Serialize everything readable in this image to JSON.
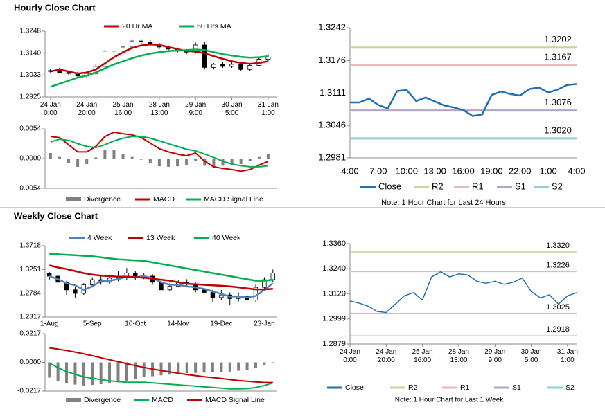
{
  "sections": [
    {
      "title": "Hourly Close Chart"
    },
    {
      "title": "Weekly Close Chart"
    }
  ],
  "chart_data": [
    {
      "type": "candlestick",
      "legend": "top",
      "x": [
        0,
        5,
        10,
        15,
        20,
        25,
        30,
        35,
        40,
        45,
        50,
        55,
        60,
        65,
        70,
        75,
        80,
        85,
        90,
        95,
        100,
        105,
        110,
        115,
        120
      ],
      "open": [
        1.305,
        1.3055,
        1.3045,
        1.304,
        1.3028,
        1.304,
        1.3075,
        1.315,
        1.3165,
        1.317,
        1.32,
        1.3195,
        1.318,
        1.317,
        1.316,
        1.315,
        1.3145,
        1.318,
        1.307,
        1.3085,
        1.3075,
        1.3085,
        1.306,
        1.308,
        1.311
      ],
      "high": [
        1.3065,
        1.3068,
        1.3055,
        1.3048,
        1.305,
        1.3085,
        1.3158,
        1.3172,
        1.3185,
        1.3212,
        1.321,
        1.3205,
        1.319,
        1.3178,
        1.3168,
        1.316,
        1.3192,
        1.3195,
        1.3092,
        1.3098,
        1.3095,
        1.3092,
        1.3088,
        1.3118,
        1.3135
      ],
      "low": [
        1.304,
        1.304,
        1.3032,
        1.302,
        1.3018,
        1.3035,
        1.3068,
        1.314,
        1.3155,
        1.3162,
        1.3185,
        1.3175,
        1.316,
        1.315,
        1.314,
        1.3135,
        1.3138,
        1.306,
        1.306,
        1.3068,
        1.3068,
        1.3052,
        1.3052,
        1.3075,
        1.31
      ],
      "close": [
        1.3055,
        1.3045,
        1.304,
        1.3028,
        1.304,
        1.3075,
        1.315,
        1.3165,
        1.317,
        1.32,
        1.3195,
        1.318,
        1.317,
        1.316,
        1.315,
        1.3145,
        1.318,
        1.307,
        1.3085,
        1.3075,
        1.3085,
        1.306,
        1.308,
        1.311,
        1.312
      ],
      "series": [
        {
          "name": "20 Hr MA",
          "color": "#c00000",
          "values": [
            1.305,
            1.306,
            1.305,
            1.304,
            1.3045,
            1.306,
            1.309,
            1.312,
            1.3145,
            1.3165,
            1.3178,
            1.3183,
            1.318,
            1.317,
            1.316,
            1.315,
            1.3148,
            1.314,
            1.3125,
            1.3112,
            1.31,
            1.3092,
            1.3088,
            1.3092,
            1.31
          ]
        },
        {
          "name": "50 Hrs MA",
          "color": "#00b050",
          "values": [
            1.2975,
            1.299,
            1.3005,
            1.302,
            1.303,
            1.3045,
            1.3065,
            1.3085,
            1.31,
            1.3115,
            1.3128,
            1.3138,
            1.3145,
            1.315,
            1.3153,
            1.3155,
            1.3158,
            1.3155,
            1.3145,
            1.3135,
            1.3128,
            1.3122,
            1.3118,
            1.312,
            1.3125
          ]
        }
      ],
      "xlim": [
        -3,
        125
      ],
      "xticks": [
        {
          "value": 0,
          "label": "24 Jan\n0:00"
        },
        {
          "value": 20,
          "label": "24 Jan\n20:00"
        },
        {
          "value": 40,
          "label": "25 Jan\n16:00"
        },
        {
          "value": 60,
          "label": "28 Jan\n13:00"
        },
        {
          "value": 80,
          "label": "29 Jan\n9:00"
        },
        {
          "value": 100,
          "label": "30 Jan\n5:00"
        },
        {
          "value": 120,
          "label": "31 Jan\n1:00"
        }
      ],
      "ylim": [
        1.2925,
        1.3248
      ],
      "yticks": [
        1.2925,
        1.3033,
        {
          "value": 1.314,
          "label": "1.3140"
        },
        1.3248
      ]
    },
    {
      "type": "combo",
      "legend": "bottom",
      "x": [
        0,
        5,
        10,
        15,
        20,
        25,
        30,
        35,
        40,
        45,
        50,
        55,
        60,
        65,
        70,
        75,
        80,
        85,
        90,
        95,
        100,
        105,
        110,
        115,
        120
      ],
      "series": [
        {
          "name": "Divergence",
          "type": "bar",
          "color": "#808080",
          "values": [
            0.001,
            0.0003,
            -0.0008,
            -0.0015,
            -0.001,
            0.0002,
            0.0015,
            0.0016,
            0.0008,
            0.0003,
            -0.0002,
            -0.0009,
            -0.0014,
            -0.0015,
            -0.0014,
            -0.0012,
            -0.0004,
            -0.0013,
            -0.0017,
            -0.0013,
            -0.001,
            -0.001,
            -0.0005,
            0.0003,
            0.0008
          ]
        },
        {
          "name": "MACD",
          "type": "line",
          "color": "#c00000",
          "values": [
            0.004,
            0.0038,
            0.0025,
            0.0012,
            0.0012,
            0.0022,
            0.004,
            0.0048,
            0.0045,
            0.0043,
            0.0038,
            0.0028,
            0.0018,
            0.0012,
            0.0008,
            0.0005,
            0.001,
            -0.0005,
            -0.0015,
            -0.0018,
            -0.002,
            -0.0023,
            -0.002,
            -0.0012,
            -0.0005
          ]
        },
        {
          "name": "MACD Signal Line",
          "type": "line",
          "color": "#00b050",
          "values": [
            0.003,
            0.0035,
            0.0033,
            0.0027,
            0.0022,
            0.002,
            0.0025,
            0.0032,
            0.0037,
            0.004,
            0.004,
            0.0037,
            0.0032,
            0.0027,
            0.0022,
            0.0017,
            0.0014,
            0.0008,
            0.0002,
            -0.0005,
            -0.001,
            -0.0013,
            -0.0015,
            -0.0015,
            -0.0013
          ]
        }
      ],
      "xlim": [
        -3,
        125
      ],
      "ylim": [
        -0.0054,
        0.0054
      ],
      "yticks": [
        -0.0054,
        {
          "value": 0,
          "label": "0.0000"
        },
        0.0054
      ]
    },
    {
      "type": "line",
      "legend": "bottom",
      "note": "Note: 1 Hour Chart for Last 24 Hours",
      "categories": [
        "4:00",
        null,
        null,
        "7:00",
        null,
        null,
        "10:00",
        null,
        null,
        "13:00",
        null,
        null,
        "16:00",
        null,
        null,
        "19:00",
        null,
        null,
        "22:00",
        null,
        null,
        "1:00",
        null,
        null,
        "4:00"
      ],
      "series": [
        {
          "name": "Close",
          "color": "#1f6fb4",
          "values": [
            1.3092,
            1.3092,
            1.31,
            1.3087,
            1.308,
            1.3115,
            1.3117,
            1.3095,
            1.3102,
            1.3094,
            1.3086,
            1.3082,
            1.3077,
            1.3065,
            1.3068,
            1.3107,
            1.3114,
            1.3109,
            1.3106,
            1.3119,
            1.3122,
            1.3112,
            1.3118,
            1.3127,
            1.3129
          ]
        }
      ],
      "levels": [
        {
          "name": "R2",
          "color": "#c3d69b",
          "value": 1.3202
        },
        {
          "name": "R1",
          "color": "#e6b9b8",
          "value": 1.3167
        },
        {
          "name": "S1",
          "color": "#b3a2c7",
          "value": 1.3076
        },
        {
          "name": "S2",
          "color": "#93cddd",
          "value": 1.302,
          "value_label": "1.3020"
        }
      ],
      "ylim": [
        1.2981,
        1.3242
      ],
      "yticks": [
        1.2981,
        1.3046,
        1.3111,
        1.3176,
        1.3242
      ]
    },
    {
      "type": "candlestick",
      "legend": "top",
      "categories": [
        "1-Aug",
        null,
        null,
        null,
        null,
        "5-Sep",
        null,
        null,
        null,
        null,
        "10-Oct",
        null,
        null,
        null,
        null,
        "14-Nov",
        null,
        null,
        null,
        null,
        "19-Dec",
        null,
        null,
        null,
        null,
        "23-Jan",
        null
      ],
      "open": [
        1.318,
        1.312,
        1.3,
        1.285,
        1.278,
        1.295,
        1.305,
        1.3,
        1.308,
        1.31,
        1.318,
        1.31,
        1.312,
        1.3,
        1.285,
        1.292,
        1.3,
        1.297,
        1.285,
        1.28,
        1.27,
        1.275,
        1.268,
        1.272,
        1.265,
        1.29,
        1.305
      ],
      "high": [
        1.32,
        1.315,
        1.303,
        1.29,
        1.298,
        1.31,
        1.312,
        1.312,
        1.322,
        1.328,
        1.322,
        1.318,
        1.316,
        1.303,
        1.298,
        1.305,
        1.306,
        1.3,
        1.29,
        1.285,
        1.285,
        1.28,
        1.28,
        1.278,
        1.295,
        1.31,
        1.325
      ],
      "low": [
        1.305,
        1.295,
        1.275,
        1.27,
        1.275,
        1.29,
        1.295,
        1.296,
        1.302,
        1.305,
        1.305,
        1.306,
        1.295,
        1.28,
        1.282,
        1.29,
        1.29,
        1.28,
        1.275,
        1.262,
        1.265,
        1.255,
        1.262,
        1.26,
        1.262,
        1.285,
        1.3
      ],
      "close": [
        1.312,
        1.3,
        1.285,
        1.278,
        1.295,
        1.305,
        1.3,
        1.308,
        1.31,
        1.318,
        1.31,
        1.312,
        1.3,
        1.285,
        1.292,
        1.3,
        1.297,
        1.285,
        1.28,
        1.27,
        1.275,
        1.268,
        1.272,
        1.265,
        1.29,
        1.305,
        1.318
      ],
      "series": [
        {
          "name": "4 Week",
          "color": "#4f81bd",
          "values": [
            1.312,
            1.306,
            1.298,
            1.294,
            1.285,
            1.292,
            1.302,
            1.303,
            1.306,
            1.311,
            1.31,
            1.312,
            1.308,
            1.3,
            1.295,
            1.295,
            1.292,
            1.29,
            1.287,
            1.282,
            1.277,
            1.272,
            1.272,
            1.27,
            1.273,
            1.285,
            1.298
          ]
        },
        {
          "name": "13 Week",
          "color": "#c00000",
          "values": [
            1.333,
            1.329,
            1.326,
            1.322,
            1.318,
            1.315,
            1.313,
            1.312,
            1.311,
            1.311,
            1.31,
            1.309,
            1.307,
            1.305,
            1.303,
            1.3,
            1.297,
            1.296,
            1.295,
            1.294,
            1.293,
            1.292,
            1.29,
            1.288,
            1.286,
            1.286,
            1.287
          ]
        },
        {
          "name": "40 Week",
          "color": "#00b050",
          "values": [
            1.356,
            1.355,
            1.354,
            1.353,
            1.352,
            1.351,
            1.349,
            1.347,
            1.345,
            1.344,
            1.343,
            1.342,
            1.339,
            1.336,
            1.333,
            1.33,
            1.327,
            1.324,
            1.321,
            1.318,
            1.315,
            1.312,
            1.309,
            1.306,
            1.303,
            1.303,
            1.305
          ]
        }
      ],
      "ylim": [
        1.2317,
        1.3718
      ],
      "yticks": [
        1.2317,
        1.2784,
        1.3251,
        1.3718
      ]
    },
    {
      "type": "combo",
      "legend": "bottom",
      "categories": [
        null,
        null,
        null,
        null,
        null,
        null,
        null,
        null,
        null,
        null,
        null,
        null,
        null,
        null,
        null,
        null,
        null,
        null,
        null,
        null,
        null,
        null,
        null,
        null,
        null,
        null,
        null
      ],
      "series": [
        {
          "name": "Divergence",
          "type": "bar",
          "color": "#808080",
          "values": [
            -0.0115,
            -0.014,
            -0.016,
            -0.0168,
            -0.0175,
            -0.017,
            -0.0165,
            -0.016,
            -0.015,
            -0.014,
            -0.0125,
            -0.0112,
            -0.0105,
            -0.0098,
            -0.0093,
            -0.0088,
            -0.0083,
            -0.008,
            -0.0077,
            -0.0075,
            -0.0073,
            -0.007,
            -0.0063,
            -0.0055,
            -0.0042,
            -0.0023,
            -0.0003
          ]
        },
        {
          "name": "MACD",
          "type": "line",
          "color": "#00b050",
          "values": [
            -0.0005,
            -0.004,
            -0.007,
            -0.009,
            -0.011,
            -0.012,
            -0.013,
            -0.014,
            -0.0145,
            -0.015,
            -0.015,
            -0.015,
            -0.0155,
            -0.016,
            -0.0165,
            -0.017,
            -0.0175,
            -0.018,
            -0.0185,
            -0.019,
            -0.0195,
            -0.02,
            -0.02,
            -0.0198,
            -0.019,
            -0.0175,
            -0.0155
          ]
        },
        {
          "name": "MACD Signal Line",
          "type": "line",
          "color": "#c00000",
          "values": [
            0.011,
            0.01,
            0.009,
            0.0078,
            0.0065,
            0.005,
            0.0035,
            0.002,
            0.0005,
            -0.001,
            -0.0025,
            -0.0038,
            -0.005,
            -0.0062,
            -0.0072,
            -0.0082,
            -0.0092,
            -0.01,
            -0.0108,
            -0.0115,
            -0.0122,
            -0.013,
            -0.0137,
            -0.0143,
            -0.0148,
            -0.0152,
            -0.0152
          ]
        }
      ],
      "ylim": [
        -0.0217,
        0.0217
      ],
      "yticks": [
        -0.0217,
        {
          "value": 0,
          "label": "0.0000"
        },
        0.0217
      ]
    },
    {
      "type": "line",
      "legend": "bottom",
      "note": "Note: 1 Hour Chart for Last 1 Week",
      "x": [
        0,
        5,
        10,
        15,
        20,
        25,
        30,
        35,
        40,
        45,
        50,
        55,
        60,
        65,
        70,
        75,
        80,
        85,
        90,
        95,
        100,
        105,
        110,
        115,
        120,
        125
      ],
      "series": [
        {
          "name": "Close",
          "color": "#1f6fb4",
          "values": [
            1.3085,
            1.3075,
            1.306,
            1.3035,
            1.303,
            1.307,
            1.311,
            1.3125,
            1.309,
            1.32,
            1.3225,
            1.32,
            1.3215,
            1.321,
            1.318,
            1.317,
            1.318,
            1.3165,
            1.3175,
            1.3195,
            1.313,
            1.31,
            1.3115,
            1.307,
            1.311,
            1.3125
          ]
        }
      ],
      "levels": [
        {
          "name": "R2",
          "color": "#c3d69b",
          "value": 1.332,
          "value_label": "1.3320"
        },
        {
          "name": "R1",
          "color": "#e6b9b8",
          "value": 1.3226
        },
        {
          "name": "S1",
          "color": "#b3a2c7",
          "value": 1.3025
        },
        {
          "name": "S2",
          "color": "#93cddd",
          "value": 1.2918
        }
      ],
      "xlim": [
        0,
        125
      ],
      "xticks": [
        {
          "value": 0,
          "label": "24 Jan\n0:00"
        },
        {
          "value": 20,
          "label": "24 Jan\n20:00"
        },
        {
          "value": 40,
          "label": "25 Jan\n16:00"
        },
        {
          "value": 60,
          "label": "28 Jan\n13:00"
        },
        {
          "value": 80,
          "label": "29 Jan\n9:00"
        },
        {
          "value": 100,
          "label": "30 Jan\n5:00"
        },
        {
          "value": 120,
          "label": "31 Jan\n1:00"
        }
      ],
      "ylim": [
        1.2879,
        1.336
      ],
      "yticks": [
        1.2879,
        1.2999,
        {
          "value": 1.312,
          "label": "1.3120"
        },
        {
          "value": 1.324,
          "label": "1.3240"
        },
        {
          "value": 1.336,
          "label": "1.3360"
        }
      ]
    }
  ]
}
